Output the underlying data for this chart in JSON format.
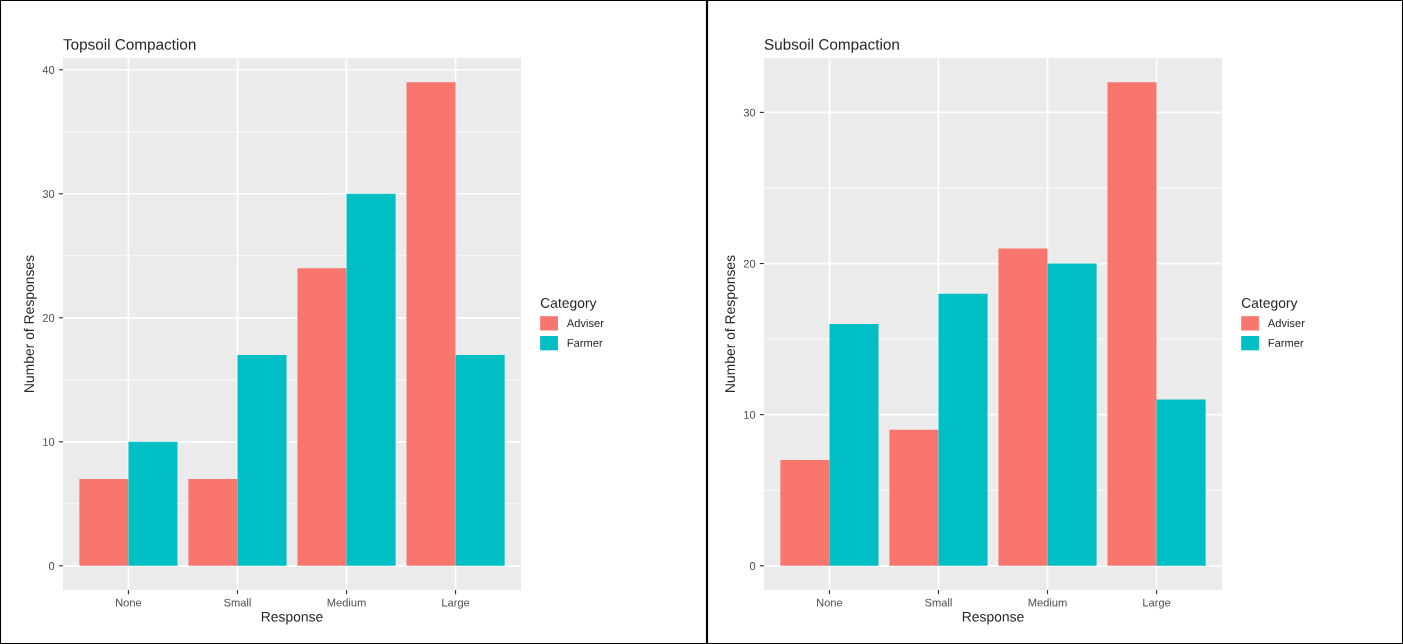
{
  "chart_data": [
    {
      "type": "bar",
      "title": "Topsoil Compaction",
      "xlabel": "Response",
      "ylabel": "Number of Responses",
      "legend_title": "Category",
      "categories": [
        "None",
        "Small",
        "Medium",
        "Large"
      ],
      "series": [
        {
          "name": "Adviser",
          "color": "#f8766d",
          "values": [
            7,
            7,
            24,
            39
          ]
        },
        {
          "name": "Farmer",
          "color": "#00bfc4",
          "values": [
            10,
            17,
            30,
            17
          ]
        }
      ],
      "ylim": [
        -1.95,
        40.95
      ],
      "yticks": [
        0,
        10,
        20,
        30,
        40
      ],
      "grid": true,
      "legend": "right"
    },
    {
      "type": "bar",
      "title": "Subsoil Compaction",
      "xlabel": "Response",
      "ylabel": "Number of Responses",
      "legend_title": "Category",
      "categories": [
        "None",
        "Small",
        "Medium",
        "Large"
      ],
      "series": [
        {
          "name": "Adviser",
          "color": "#f8766d",
          "values": [
            7,
            9,
            21,
            32
          ]
        },
        {
          "name": "Farmer",
          "color": "#00bfc4",
          "values": [
            16,
            18,
            20,
            11
          ]
        }
      ],
      "ylim": [
        -1.6,
        33.6
      ],
      "yticks": [
        0,
        10,
        20,
        30
      ],
      "grid": true,
      "legend": "right"
    }
  ]
}
